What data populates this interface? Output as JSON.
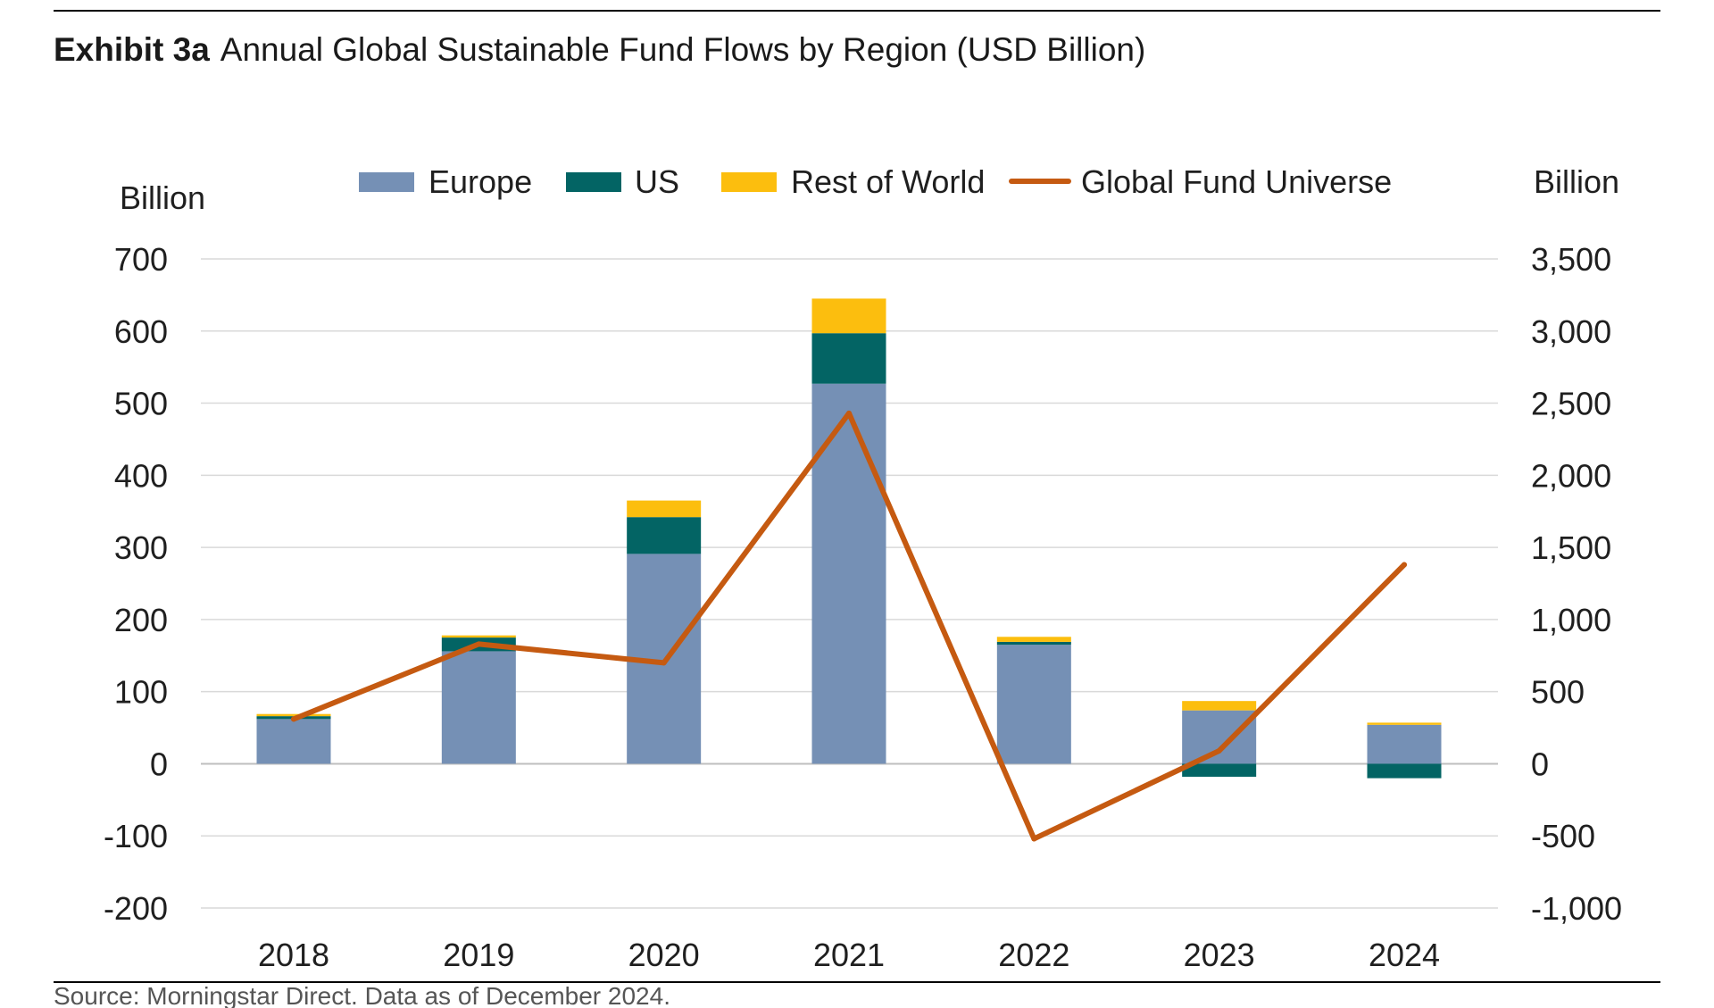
{
  "chart_data": {
    "type": "bar",
    "exhibit": "Exhibit 3a",
    "title": "Annual Global Sustainable Fund Flows by Region (USD Billion)",
    "categories": [
      "2018",
      "2019",
      "2020",
      "2021",
      "2022",
      "2023",
      "2024"
    ],
    "series": [
      {
        "name": "Europe",
        "kind": "stacked-bar",
        "axis": "left",
        "color": "#7590b5",
        "values": [
          62,
          156,
          291,
          527,
          165,
          74,
          54
        ]
      },
      {
        "name": "US",
        "kind": "stacked-bar",
        "axis": "left",
        "color": "#036464",
        "values": [
          4,
          19,
          51,
          70,
          4,
          -18,
          -20
        ]
      },
      {
        "name": "Rest of World",
        "kind": "stacked-bar",
        "axis": "left",
        "color": "#fcbe0e",
        "values": [
          3,
          3,
          23,
          48,
          7,
          13,
          3
        ]
      },
      {
        "name": "Global Fund Universe",
        "kind": "line",
        "axis": "right",
        "color": "#c55a11",
        "values": [
          310,
          830,
          700,
          2430,
          -520,
          90,
          1380
        ]
      }
    ],
    "ylabel": "Billion",
    "y2label": "Billion",
    "ylim": [
      -200,
      700
    ],
    "yticks": [
      700,
      600,
      500,
      400,
      300,
      200,
      100,
      0,
      -100,
      -200
    ],
    "y2lim": [
      -1000,
      3500
    ],
    "y2ticks": [
      "3,500",
      "3,000",
      "2,500",
      "2,000",
      "1,500",
      "1,000",
      "500",
      "0",
      "-500",
      "-1,000"
    ],
    "grid": true,
    "legend": "top",
    "source": "Source: Morningstar Direct. Data as of December 2024."
  }
}
